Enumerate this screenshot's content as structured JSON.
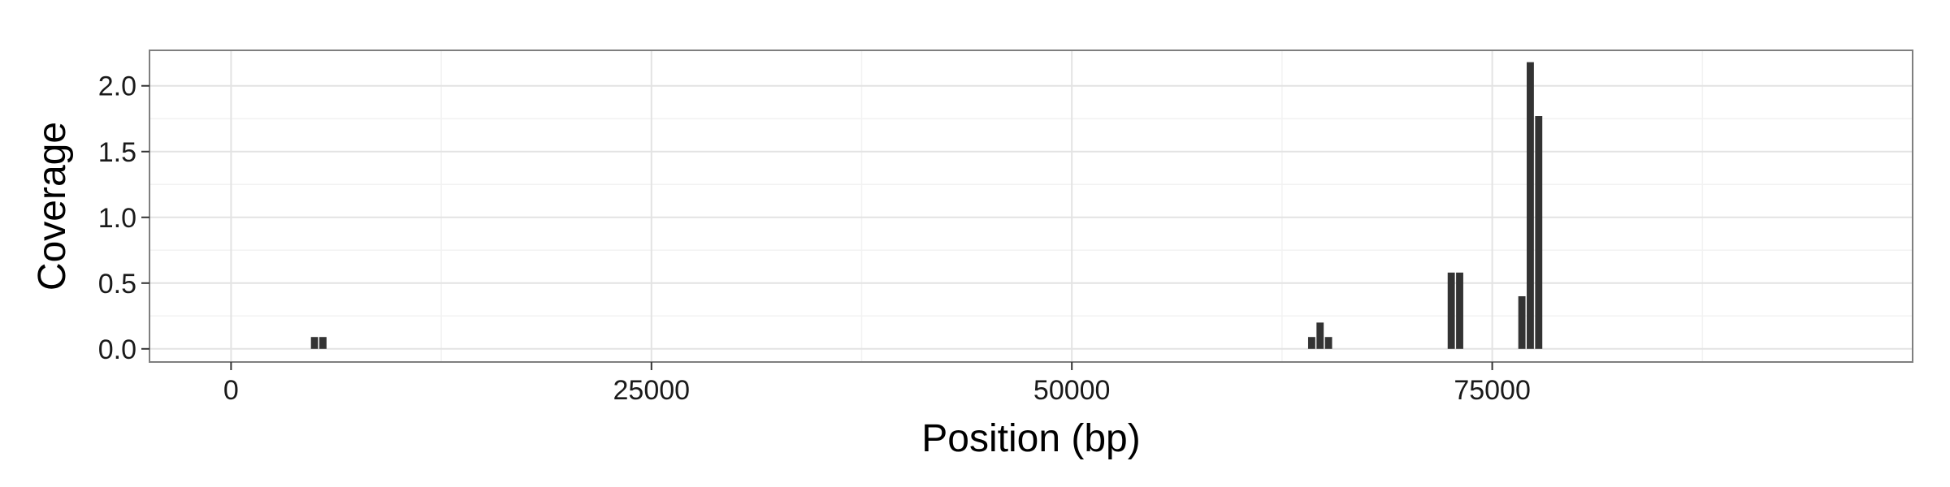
{
  "chart_data": {
    "type": "bar",
    "title": "",
    "xlabel": "Position (bp)",
    "ylabel": "Coverage",
    "xlim": [
      -4850,
      100000
    ],
    "ylim": [
      -0.1,
      2.27
    ],
    "xticks": [
      0,
      25000,
      50000,
      75000
    ],
    "xtick_labels": [
      "0",
      "25000",
      "50000",
      "75000"
    ],
    "yticks": [
      0.0,
      0.5,
      1.0,
      1.5,
      2.0
    ],
    "ytick_labels": [
      "0.0",
      "0.5",
      "1.0",
      "1.5",
      "2.0"
    ],
    "grid": true,
    "legend": "none",
    "bar_width": 500,
    "bar_color": "#333333",
    "series": [
      {
        "x": [
          5000,
          5500,
          64300,
          64800,
          65300,
          72600,
          73100,
          76800,
          77300,
          77800
        ],
        "values": [
          0.09,
          0.09,
          0.09,
          0.2,
          0.09,
          0.58,
          0.58,
          0.4,
          2.18,
          1.77
        ]
      }
    ]
  }
}
